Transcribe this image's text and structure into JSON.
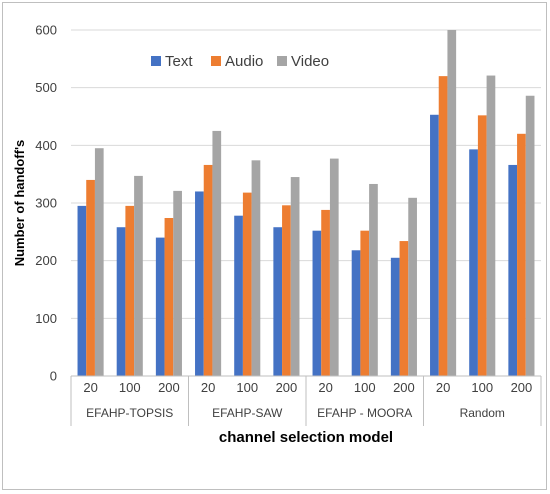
{
  "chart_data": {
    "type": "bar",
    "title": "",
    "xlabel": "channel selection model",
    "ylabel": "Number of handoff's",
    "ylim": [
      0,
      600
    ],
    "yticks": [
      0,
      100,
      200,
      300,
      400,
      500,
      600
    ],
    "grid": true,
    "legend_position": "top-left",
    "groups": [
      {
        "name": "EFAHP-TOPSIS",
        "categories": [
          "20",
          "100",
          "200"
        ]
      },
      {
        "name": "EFAHP-SAW",
        "categories": [
          "20",
          "100",
          "200"
        ]
      },
      {
        "name": "EFAHP - MOORA",
        "categories": [
          "20",
          "100",
          "200"
        ]
      },
      {
        "name": "Random",
        "categories": [
          "20",
          "100",
          "200"
        ]
      }
    ],
    "series": [
      {
        "name": "Text",
        "color": "#4472C4",
        "values": [
          295,
          258,
          240,
          320,
          278,
          258,
          252,
          218,
          205,
          453,
          393,
          366
        ]
      },
      {
        "name": "Audio",
        "color": "#ED7D31",
        "values": [
          340,
          295,
          274,
          366,
          318,
          296,
          288,
          252,
          234,
          520,
          452,
          420
        ]
      },
      {
        "name": "Video",
        "color": "#A5A5A5",
        "values": [
          395,
          347,
          321,
          425,
          374,
          345,
          377,
          333,
          309,
          600,
          521,
          486
        ]
      }
    ]
  }
}
